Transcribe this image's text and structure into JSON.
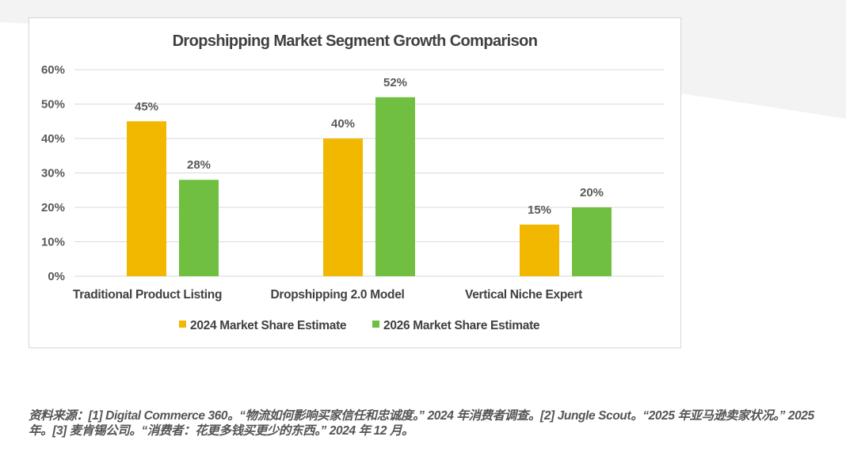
{
  "chart_data": {
    "type": "bar",
    "title": "Dropshipping Market Segment Growth Comparison",
    "categories": [
      "Traditional Product Listing",
      "Dropshipping 2.0 Model",
      "Vertical Niche Expert"
    ],
    "series": [
      {
        "name": "2024 Market Share Estimate",
        "color": "#f2b800",
        "values": [
          45,
          40,
          15
        ],
        "labels": [
          "45%",
          "40%",
          "15%"
        ]
      },
      {
        "name": "2026 Market Share Estimate",
        "color": "#70bf41",
        "values": [
          28,
          52,
          20
        ],
        "labels": [
          "28%",
          "52%",
          "20%"
        ]
      }
    ],
    "y_ticks": [
      "0%",
      "10%",
      "20%",
      "30%",
      "40%",
      "50%",
      "60%"
    ],
    "ylim": [
      0,
      60
    ],
    "xlabel": "",
    "ylabel": "",
    "grid": true,
    "legend_position": "bottom"
  },
  "source_note": "资料来源：[1] Digital Commerce 360。“物流如何影响买家信任和忠诚度。” 2024 年消费者调查。[2] Jungle Scout。“2025 年亚马逊卖家状况。” 2025 年。[3] 麦肯锡公司。“消费者：花更多钱买更少的东西。” 2024 年 12 月。",
  "colors": {
    "gridline": "#d9d9d9",
    "axis": "#d9d9d9",
    "wave": "#f2f2f2"
  }
}
